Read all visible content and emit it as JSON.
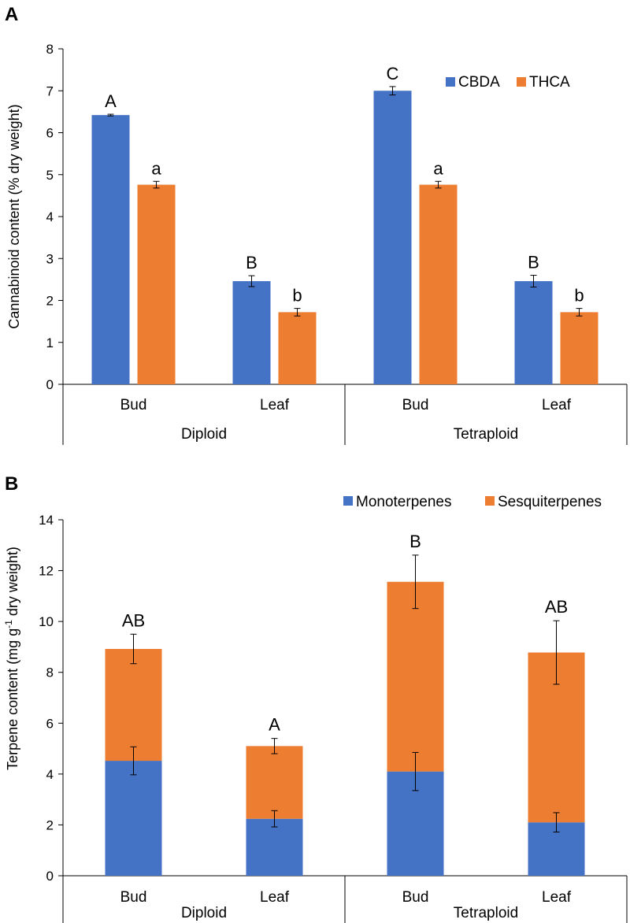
{
  "chart_data": [
    {
      "panel": "A",
      "type": "bar",
      "ylabel": "Cannabinoid content (% dry weight)",
      "ylim": [
        0,
        8
      ],
      "yticks": [
        0,
        1,
        2,
        3,
        4,
        5,
        6,
        7,
        8
      ],
      "groups": [
        {
          "label": "Diploid",
          "categories": [
            "Bud",
            "Leaf"
          ]
        },
        {
          "label": "Tetraploid",
          "categories": [
            "Bud",
            "Leaf"
          ]
        }
      ],
      "series": [
        {
          "name": "CBDA",
          "color": "#4472C4",
          "values": [
            6.42,
            2.46,
            7.0,
            2.46
          ],
          "errors": [
            0.02,
            0.13,
            0.1,
            0.14
          ],
          "letters": [
            "A",
            "B",
            "C",
            "B"
          ]
        },
        {
          "name": "THCA",
          "color": "#ED7D31",
          "values": [
            4.76,
            1.72,
            4.76,
            1.72
          ],
          "errors": [
            0.08,
            0.09,
            0.08,
            0.09
          ],
          "letters": [
            "a",
            "b",
            "a",
            "b"
          ]
        }
      ],
      "legend": "top-right"
    },
    {
      "panel": "B",
      "type": "stacked-bar",
      "ylabel_parts": [
        "Terpene  content (mg g",
        "-1",
        " dry weight)"
      ],
      "ylim": [
        0,
        14
      ],
      "yticks": [
        0,
        2,
        4,
        6,
        8,
        10,
        12,
        14
      ],
      "groups": [
        {
          "label": "Diploid",
          "categories": [
            "Bud",
            "Leaf"
          ]
        },
        {
          "label": "Tetraploid",
          "categories": [
            "Bud",
            "Leaf"
          ]
        }
      ],
      "series": [
        {
          "name": "Monoterpenes",
          "color": "#4472C4",
          "values": [
            4.52,
            2.24,
            4.1,
            2.1
          ],
          "errors": [
            0.55,
            0.32,
            0.75,
            0.38
          ]
        },
        {
          "name": "Sesquiterpenes",
          "color": "#ED7D31",
          "values": [
            4.4,
            2.86,
            7.46,
            6.68
          ],
          "errors": [
            0.58,
            0.3,
            1.05,
            1.25
          ]
        }
      ],
      "letters": [
        "AB",
        "A",
        "B",
        "AB"
      ],
      "legend": "top-right"
    }
  ]
}
